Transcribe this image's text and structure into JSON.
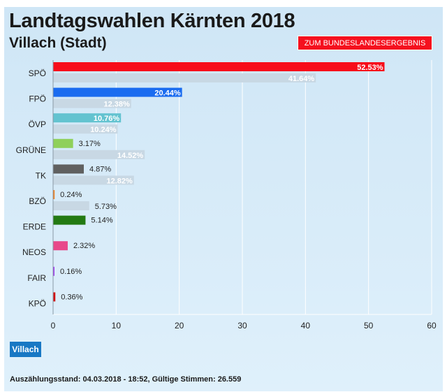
{
  "header": {
    "title": "Landtagswahlen Kärnten 2018",
    "subtitle": "Villach (Stadt)",
    "result_button": "ZUM BUNDESLANDESERGEBNIS"
  },
  "region_button": "Villach",
  "footer": "Auszählungsstand: 04.03.2018 - 18:52, Gültige Stimmen: 26.559",
  "chart_data": {
    "type": "bar",
    "orientation": "horizontal",
    "categories": [
      "SPÖ",
      "FPÖ",
      "ÖVP",
      "GRÜNE",
      "TK",
      "BZÖ",
      "ERDE",
      "NEOS",
      "FAIR",
      "KPÖ"
    ],
    "series": [
      {
        "values": [
          52.53,
          20.44,
          10.76,
          3.17,
          4.87,
          0.24,
          5.14,
          2.32,
          0.16,
          0.36
        ],
        "colors": [
          "#f70d1a",
          "#1a6cf0",
          "#63c3d0",
          "#8fd05a",
          "#606060",
          "#f08020",
          "#237a13",
          "#e8488a",
          "#a040f0",
          "#d01010"
        ]
      },
      {
        "values": [
          41.64,
          12.38,
          10.24,
          14.52,
          12.82,
          5.73,
          null,
          null,
          null,
          null
        ],
        "color": "#c8d8e4"
      }
    ],
    "xlim": [
      0,
      60
    ],
    "xticks": [
      0,
      10,
      20,
      30,
      40,
      50,
      60
    ],
    "grid": true,
    "value_suffix": "%"
  }
}
